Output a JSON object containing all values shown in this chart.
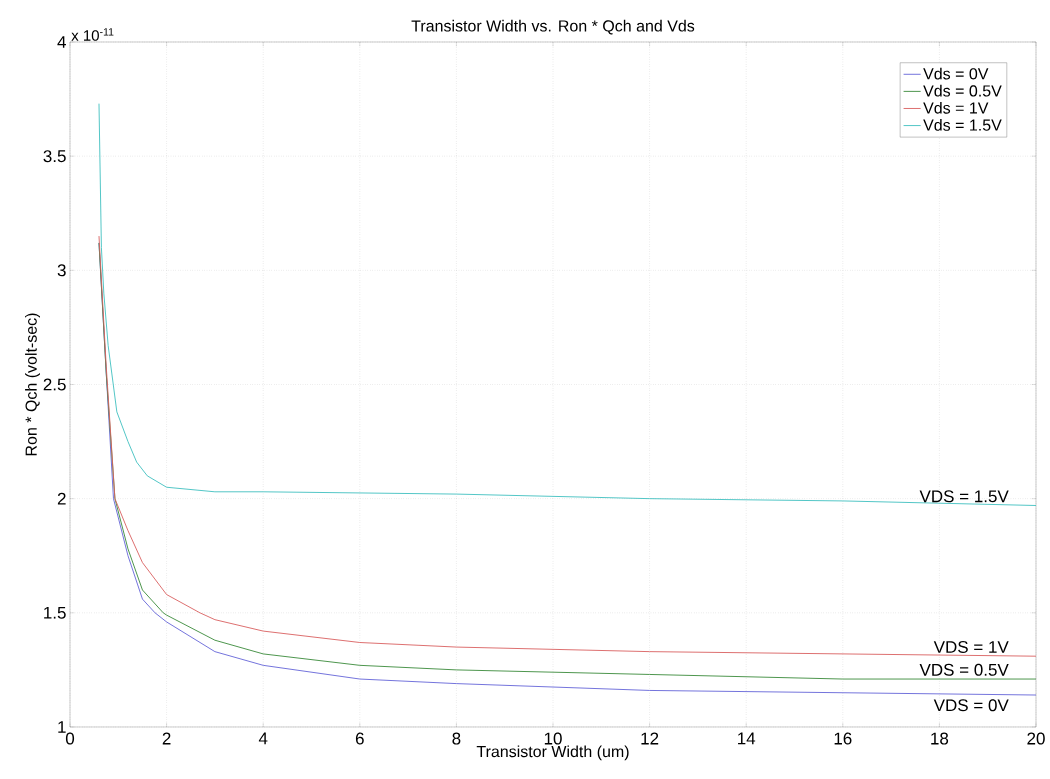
{
  "chart_data": {
    "type": "line",
    "title": "Transistor Width vs. Ron * Qch and Vds",
    "xlabel": "Transistor Width (um)",
    "ylabel": "Ron * Qch (volt-sec)",
    "xlim": [
      0,
      20
    ],
    "ylim": [
      1,
      4
    ],
    "xticks": [
      0,
      2,
      4,
      6,
      8,
      10,
      12,
      14,
      16,
      18,
      20
    ],
    "yticks": [
      1,
      1.5,
      2,
      2.5,
      3,
      3.5,
      4
    ],
    "grid": true,
    "legend": "top right",
    "marker": "none",
    "line_style": "solid",
    "series": [
      {
        "name": "Vds = 0V",
        "color": "#6464d8",
        "x": [
          0.6,
          0.75,
          0.9,
          1.2,
          1.5,
          1.76,
          2,
          3,
          4,
          6,
          8,
          12,
          16,
          20
        ],
        "values": [
          3.12,
          2.55,
          2.0,
          1.75,
          1.56,
          1.5,
          1.46,
          1.33,
          1.27,
          1.21,
          1.19,
          1.16,
          1.15,
          1.14
        ]
      },
      {
        "name": "Vds = 0.5V",
        "color": "#3a8a3a",
        "x": [
          0.6,
          0.75,
          0.93,
          1.2,
          1.5,
          1.93,
          2,
          3,
          4,
          6,
          8,
          12,
          16,
          20
        ],
        "values": [
          3.12,
          2.55,
          2.0,
          1.78,
          1.6,
          1.5,
          1.49,
          1.38,
          1.32,
          1.27,
          1.25,
          1.23,
          1.21,
          1.21
        ]
      },
      {
        "name": "Vds = 1V",
        "color": "#d96060",
        "x": [
          0.6,
          0.75,
          0.93,
          1.2,
          1.5,
          2,
          2.69,
          3,
          4,
          6,
          8,
          12,
          16,
          20
        ],
        "values": [
          3.15,
          2.58,
          2.0,
          1.86,
          1.72,
          1.58,
          1.5,
          1.47,
          1.42,
          1.37,
          1.35,
          1.33,
          1.32,
          1.31
        ]
      },
      {
        "name": "Vds = 1.5V",
        "color": "#40c0c0",
        "x": [
          0.6,
          0.65,
          0.7,
          0.79,
          0.97,
          1.2,
          1.38,
          1.6,
          2,
          3,
          4,
          8,
          12,
          16,
          20
        ],
        "values": [
          3.73,
          3.1,
          2.9,
          2.67,
          2.38,
          2.25,
          2.16,
          2.1,
          2.05,
          2.03,
          2.03,
          2.02,
          2.0,
          1.99,
          1.97
        ]
      }
    ],
    "annotations": [
      "x 10$^{-11}$",
      "VDS = 1.5V",
      "VDS = 1V",
      "VDS = 0.5V",
      "VDS = 0V"
    ]
  }
}
